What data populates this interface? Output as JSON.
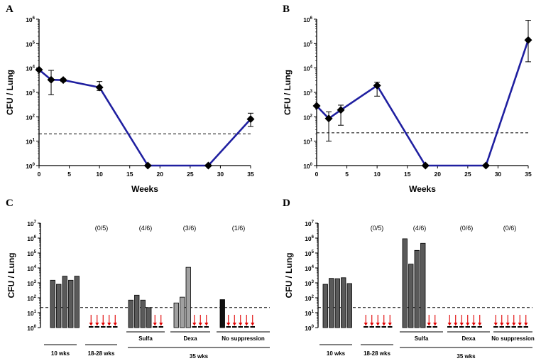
{
  "chart_data": [
    {
      "panel": "A",
      "type": "line",
      "xlabel": "Weeks",
      "ylabel": "CFU / Lung",
      "xlim": [
        0,
        35
      ],
      "xticks": [
        "0",
        "5",
        "10",
        "15",
        "20",
        "25",
        "30",
        "35"
      ],
      "ylim_log10": [
        0,
        6
      ],
      "yticks": [
        {
          "base": "10",
          "exp": "0"
        },
        {
          "base": "10",
          "exp": "1"
        },
        {
          "base": "10",
          "exp": "2"
        },
        {
          "base": "10",
          "exp": "3"
        },
        {
          "base": "10",
          "exp": "4"
        },
        {
          "base": "10",
          "exp": "5"
        },
        {
          "base": "10",
          "exp": "6"
        }
      ],
      "series": [
        {
          "name": "CFU",
          "color": "#1f1fa0",
          "x": [
            0,
            2,
            4,
            10,
            18,
            28,
            35
          ],
          "y": [
            8500,
            3300,
            3200,
            1600,
            1,
            1,
            80
          ],
          "err_low": [
            8500,
            800,
            2800,
            1200,
            1,
            1,
            40
          ],
          "err_high": [
            8500,
            8000,
            3600,
            2800,
            1,
            1,
            140
          ]
        }
      ],
      "detection_limit": 20
    },
    {
      "panel": "B",
      "type": "line",
      "xlabel": "Weeks",
      "ylabel": "CFU / Lung",
      "xlim": [
        0,
        35
      ],
      "xticks": [
        "0",
        "5",
        "10",
        "15",
        "20",
        "25",
        "30",
        "35"
      ],
      "ylim_log10": [
        0,
        6
      ],
      "yticks": [
        {
          "base": "10",
          "exp": "0"
        },
        {
          "base": "10",
          "exp": "1"
        },
        {
          "base": "10",
          "exp": "2"
        },
        {
          "base": "10",
          "exp": "3"
        },
        {
          "base": "10",
          "exp": "4"
        },
        {
          "base": "10",
          "exp": "5"
        },
        {
          "base": "10",
          "exp": "6"
        }
      ],
      "series": [
        {
          "name": "CFU",
          "color": "#1f1fa0",
          "x": [
            0,
            2,
            4,
            10,
            18,
            28,
            35
          ],
          "y": [
            280,
            85,
            190,
            1900,
            1,
            1,
            140000
          ],
          "err_low": [
            280,
            10,
            45,
            700,
            1,
            1,
            18000
          ],
          "err_high": [
            280,
            160,
            300,
            2600,
            1,
            1,
            900000
          ]
        }
      ],
      "detection_limit": 22
    },
    {
      "panel": "C",
      "type": "bar",
      "ylabel": "CFU / Lung",
      "ylim_log10": [
        0,
        7
      ],
      "yticks": [
        {
          "base": "10",
          "exp": "0"
        },
        {
          "base": "10",
          "exp": "1"
        },
        {
          "base": "10",
          "exp": "2"
        },
        {
          "base": "10",
          "exp": "3"
        },
        {
          "base": "10",
          "exp": "4"
        },
        {
          "base": "10",
          "exp": "5"
        },
        {
          "base": "10",
          "exp": "6"
        },
        {
          "base": "10",
          "exp": "7"
        }
      ],
      "detection_limit": 22,
      "groups": [
        {
          "id": "10wks",
          "ratio": "",
          "color": "#5a5a5a",
          "values": [
            1500,
            800,
            2800,
            1500,
            2800
          ],
          "arrows": 0
        },
        {
          "id": "18-28wks",
          "ratio": "(0/5)",
          "color": "#5a5a5a",
          "values": [],
          "arrows": 5
        },
        {
          "id": "sulfa",
          "ratio": "(4/6)",
          "color": "#5a5a5a",
          "values": [
            70,
            150,
            70,
            22
          ],
          "arrows": 2
        },
        {
          "id": "dexa",
          "ratio": "(3/6)",
          "color": "#a0a0a0",
          "values": [
            45,
            110,
            11000
          ],
          "arrows": 3
        },
        {
          "id": "nosup",
          "ratio": "(1/6)",
          "color": "#111111",
          "values": [
            75
          ],
          "arrows": 5
        }
      ],
      "sublabels": [
        "Sulfa",
        "Dexa",
        "No suppression"
      ],
      "bottom_labels": [
        "10 wks",
        "18-28 wks",
        "35 wks"
      ]
    },
    {
      "panel": "D",
      "type": "bar",
      "ylabel": "CFU / Lung",
      "ylim_log10": [
        0,
        7
      ],
      "yticks": [
        {
          "base": "10",
          "exp": "0"
        },
        {
          "base": "10",
          "exp": "1"
        },
        {
          "base": "10",
          "exp": "2"
        },
        {
          "base": "10",
          "exp": "3"
        },
        {
          "base": "10",
          "exp": "4"
        },
        {
          "base": "10",
          "exp": "5"
        },
        {
          "base": "10",
          "exp": "6"
        },
        {
          "base": "10",
          "exp": "7"
        }
      ],
      "detection_limit": 22,
      "groups": [
        {
          "id": "10wks",
          "ratio": "",
          "color": "#5a5a5a",
          "values": [
            800,
            2000,
            1900,
            2200,
            900
          ],
          "arrows": 0
        },
        {
          "id": "18-28wks",
          "ratio": "(0/5)",
          "color": "#5a5a5a",
          "values": [],
          "arrows": 5
        },
        {
          "id": "sulfa",
          "ratio": "(4/6)",
          "color": "#5a5a5a",
          "values": [
            900000,
            18000,
            150000,
            450000
          ],
          "arrows": 2
        },
        {
          "id": "dexa",
          "ratio": "(0/6)",
          "color": "#5a5a5a",
          "values": [],
          "arrows": 6
        },
        {
          "id": "nosup",
          "ratio": "(0/6)",
          "color": "#5a5a5a",
          "values": [],
          "arrows": 6
        }
      ],
      "sublabels": [
        "Sulfa",
        "Dexa",
        "No suppression"
      ],
      "bottom_labels": [
        "10 wks",
        "18-28 wks",
        "35 wks"
      ]
    }
  ]
}
